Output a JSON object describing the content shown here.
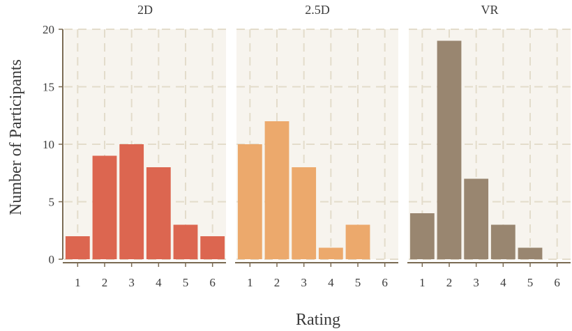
{
  "chart_data": {
    "type": "bar",
    "ylabel": "Number of Participants",
    "xlabel": "Rating",
    "ylim": [
      0,
      20
    ],
    "y_ticks": [
      "0",
      "5",
      "10",
      "15",
      "20"
    ],
    "xlim": [
      0.5,
      6.5
    ],
    "x_ticks": [
      "1",
      "2",
      "3",
      "4",
      "5",
      "6"
    ],
    "grid": true,
    "panels": [
      {
        "title": "2D",
        "color": "#dc6650",
        "categories": [
          1,
          2,
          3,
          4,
          5,
          6
        ],
        "values": [
          2,
          9,
          10,
          8,
          3,
          2
        ]
      },
      {
        "title": "2.5D",
        "color": "#eca96c",
        "categories": [
          1,
          2,
          3,
          4,
          5,
          6
        ],
        "values": [
          10,
          12,
          8,
          1,
          3,
          0
        ]
      },
      {
        "title": "VR",
        "color": "#998670",
        "categories": [
          1,
          2,
          3,
          4,
          5,
          6
        ],
        "values": [
          4,
          19,
          7,
          3,
          1,
          0
        ]
      }
    ]
  }
}
